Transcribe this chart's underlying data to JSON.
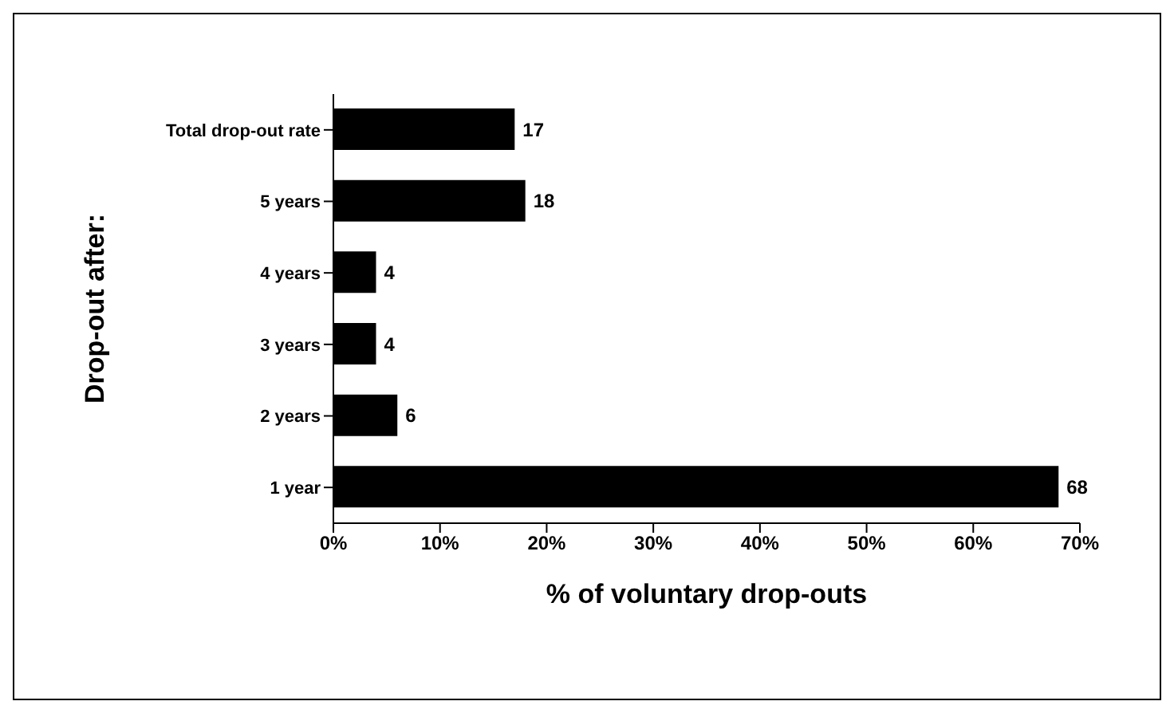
{
  "chart_data": {
    "type": "bar",
    "orientation": "horizontal",
    "xlabel": "% of voluntary drop-outs",
    "ylabel": "Drop-out after:",
    "categories": [
      "Total drop-out rate",
      "5 years",
      "4 years",
      "3 years",
      "2 years",
      "1 year"
    ],
    "values": [
      17,
      18,
      4,
      4,
      6,
      68
    ],
    "color": "#000000",
    "data_labels": true,
    "grid": false,
    "legend": false,
    "xlim": [
      0,
      70
    ],
    "xticks": [
      {
        "value": 0,
        "label": "0%"
      },
      {
        "value": 10,
        "label": "10%"
      },
      {
        "value": 20,
        "label": "20%"
      },
      {
        "value": 30,
        "label": "30%"
      },
      {
        "value": 40,
        "label": "40%"
      },
      {
        "value": 50,
        "label": "50%"
      },
      {
        "value": 60,
        "label": "60%"
      },
      {
        "value": 70,
        "label": "70%"
      }
    ]
  }
}
